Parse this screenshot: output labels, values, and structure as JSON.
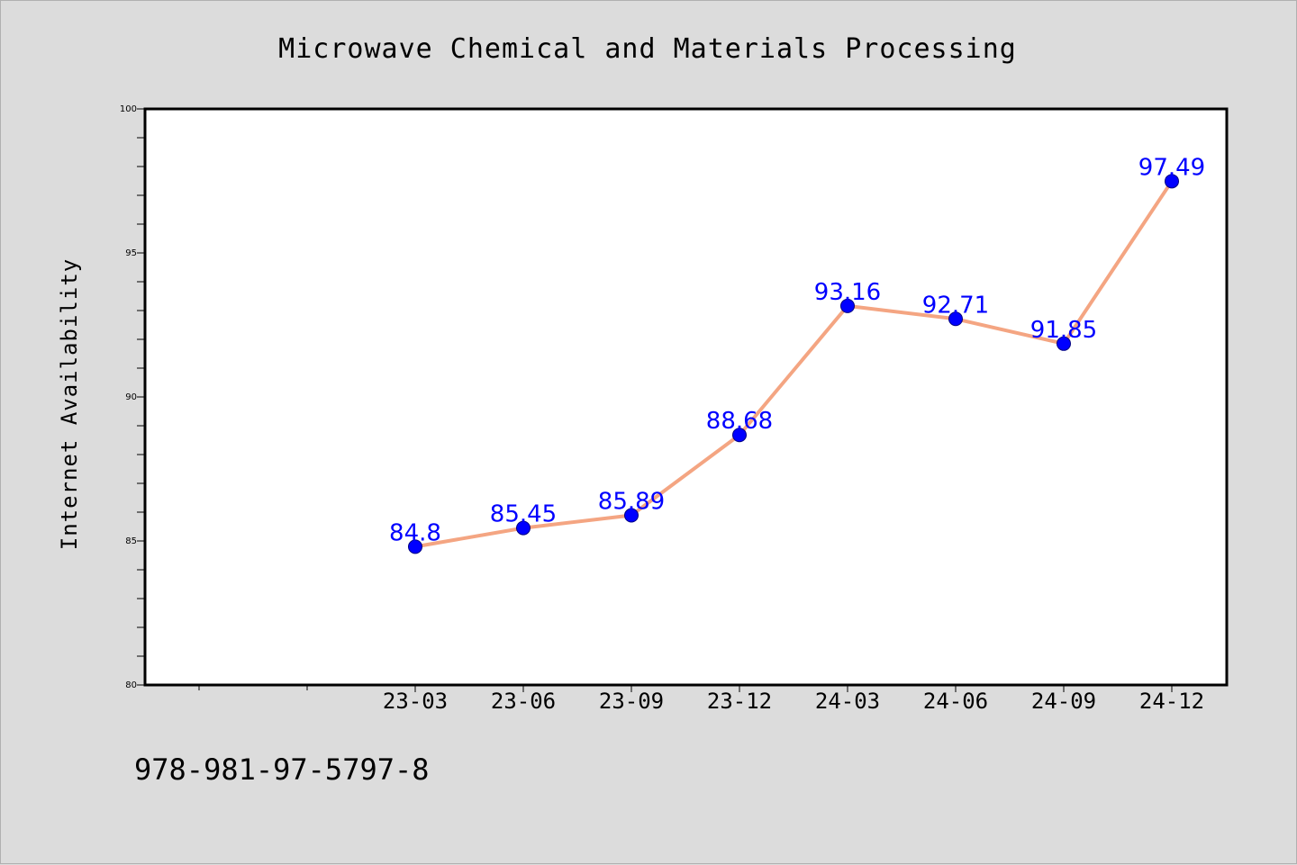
{
  "chart_data": {
    "type": "line",
    "title": "Microwave Chemical and Materials Processing",
    "xlabel": "",
    "ylabel": "Internet Availability",
    "x_tick_labels": [
      "23-03",
      "23-06",
      "23-09",
      "23-12",
      "24-03",
      "24-06",
      "24-09",
      "24-12"
    ],
    "y_tick_labels": [
      "80",
      "85",
      "90",
      "95",
      "100"
    ],
    "ylim": [
      80,
      100
    ],
    "grid": false,
    "legend": false,
    "series": [
      {
        "x": [
          "23-03",
          "23-06",
          "23-09",
          "23-12",
          "24-03",
          "24-06",
          "24-09",
          "24-12"
        ],
        "values": [
          84.8,
          85.45,
          85.89,
          88.68,
          93.16,
          92.71,
          91.85,
          97.49
        ],
        "data_labels": [
          "84.8",
          "85.45",
          "85.89",
          "88.68",
          "93.16",
          "92.71",
          "91.85",
          "97.49"
        ],
        "line_color": "#f4a582",
        "marker_color": "#0000ff"
      }
    ],
    "data_label_color": "#0000ff"
  },
  "footer": {
    "isbn": "978-981-97-5797-8"
  },
  "colors": {
    "background": "#dcdcdc",
    "plot_background": "#ffffff",
    "axis": "#000000"
  }
}
